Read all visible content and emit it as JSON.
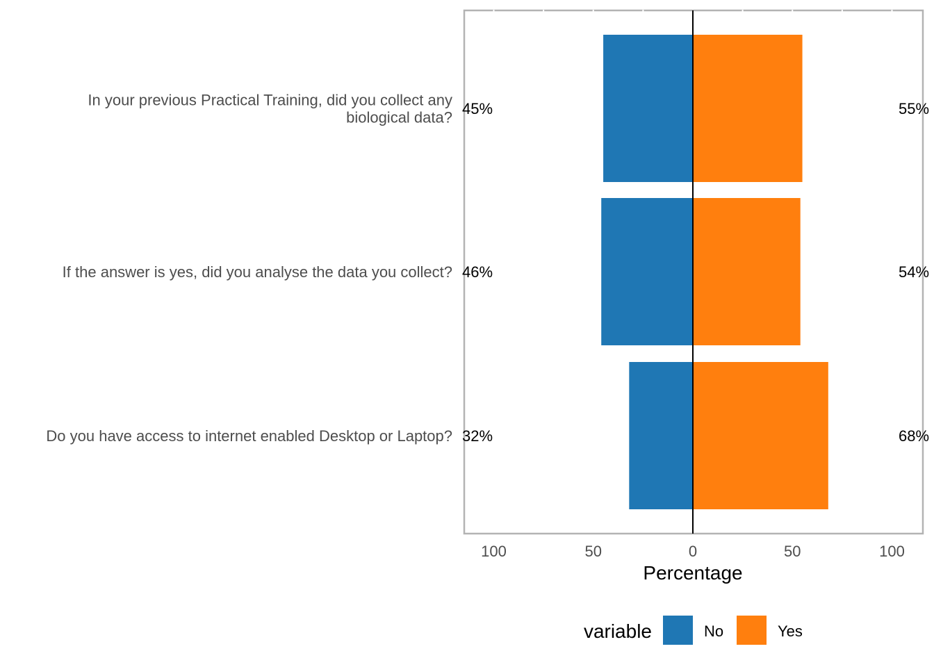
{
  "chart_data": {
    "type": "bar",
    "orientation": "horizontal-diverging",
    "categories": [
      [
        "In your previous Practical Training, did you collect any",
        "biological data?"
      ],
      [
        "If the answer is yes, did you analyse the data you collect?"
      ],
      [
        "Do you have access to internet enabled Desktop or Laptop?"
      ]
    ],
    "series": [
      {
        "name": "No",
        "color": "#1f77b4",
        "values": [
          45,
          46,
          32
        ],
        "labels": [
          "45%",
          "46%",
          "32%"
        ]
      },
      {
        "name": "Yes",
        "color": "#ff7f0e",
        "values": [
          55,
          54,
          68
        ],
        "labels": [
          "55%",
          "54%",
          "68%"
        ]
      }
    ],
    "xlabel": "Percentage",
    "xlim": [
      -100,
      100
    ],
    "xticks": [
      -100,
      -50,
      0,
      50,
      100
    ],
    "xtick_labels": [
      "100",
      "50",
      "0",
      "50",
      "100"
    ],
    "legend": {
      "title": "variable",
      "position": "bottom"
    },
    "grid": false
  }
}
